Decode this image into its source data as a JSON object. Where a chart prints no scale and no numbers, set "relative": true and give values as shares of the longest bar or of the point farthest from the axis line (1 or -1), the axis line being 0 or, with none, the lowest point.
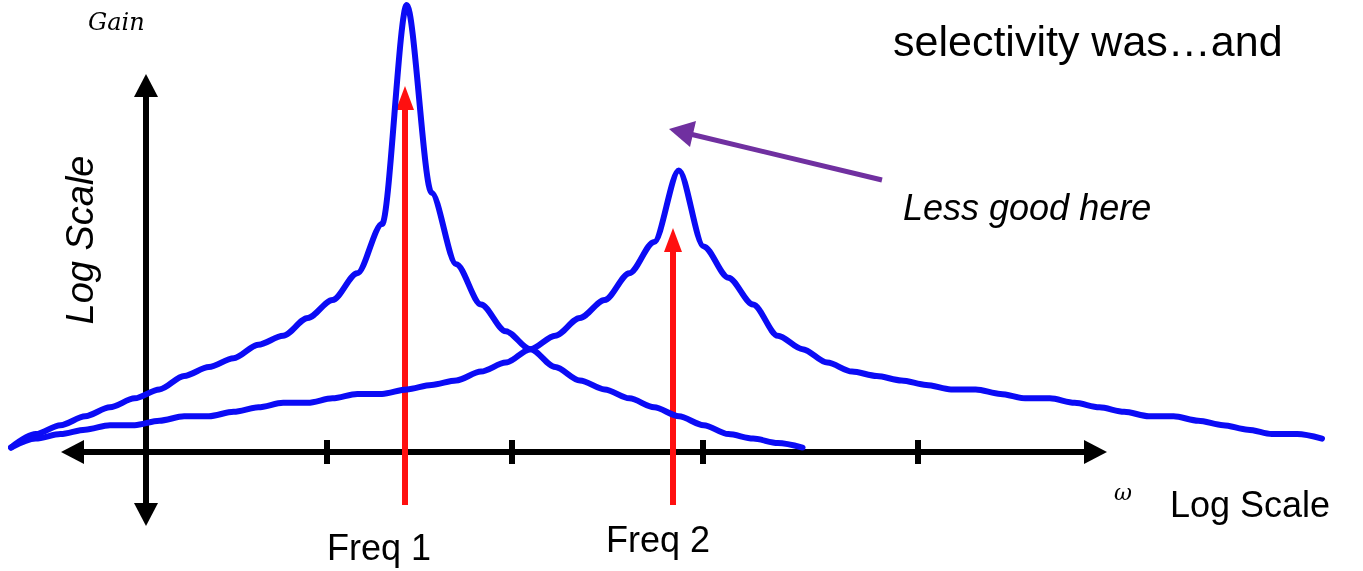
{
  "chart_data": {
    "type": "line",
    "relative": true,
    "marker": "none",
    "ylabel": "Log Scale",
    "xlabel": "Log Scale",
    "annotations": [
      "Gain",
      "ω",
      "selectivity was…and",
      "Less good here",
      "Freq 1",
      "Freq 2"
    ],
    "categories": [
      null,
      null,
      null,
      null,
      null,
      null,
      null,
      null,
      null,
      null,
      null,
      null,
      null,
      null,
      null,
      null,
      null,
      null,
      null,
      null,
      null,
      null,
      null,
      null,
      null,
      null,
      null,
      null,
      null,
      null,
      null,
      null,
      null,
      null,
      null,
      null,
      null,
      null,
      null,
      null,
      null,
      null,
      null,
      null,
      null,
      null,
      null,
      null,
      null,
      null,
      null,
      null,
      null,
      null
    ],
    "series": [
      {
        "color": "#0b0bf5",
        "values": [
          0.01,
          0.04,
          0.06,
          0.08,
          0.1,
          0.12,
          0.14,
          0.17,
          0.19,
          0.21,
          0.24,
          0.26,
          0.3,
          0.34,
          0.4,
          0.51,
          1,
          0.58,
          0.42,
          0.33,
          0.27,
          0.23,
          0.19,
          0.16,
          0.14,
          0.12,
          0.1,
          0.08,
          0.06,
          0.04,
          0.03,
          0.02,
          0.01,
          null,
          null,
          null,
          null,
          null,
          null,
          null,
          null,
          null,
          null,
          null,
          null,
          null,
          null,
          null,
          null,
          null,
          null,
          null,
          null,
          null
        ]
      },
      {
        "color": "#0b0bf5",
        "values": [
          0.01,
          0.03,
          0.04,
          0.05,
          0.06,
          0.06,
          0.07,
          0.08,
          0.08,
          0.09,
          0.1,
          0.11,
          0.11,
          0.12,
          0.13,
          0.13,
          0.14,
          0.15,
          0.16,
          0.18,
          0.2,
          0.23,
          0.26,
          0.3,
          0.34,
          0.4,
          0.47,
          0.63,
          0.46,
          0.39,
          0.33,
          0.26,
          0.23,
          0.2,
          0.18,
          0.17,
          0.16,
          0.15,
          0.14,
          0.14,
          0.13,
          0.12,
          0.12,
          0.11,
          0.1,
          0.09,
          0.08,
          0.08,
          0.07,
          0.06,
          0.05,
          0.04,
          0.04,
          0.03
        ]
      }
    ]
  }
}
